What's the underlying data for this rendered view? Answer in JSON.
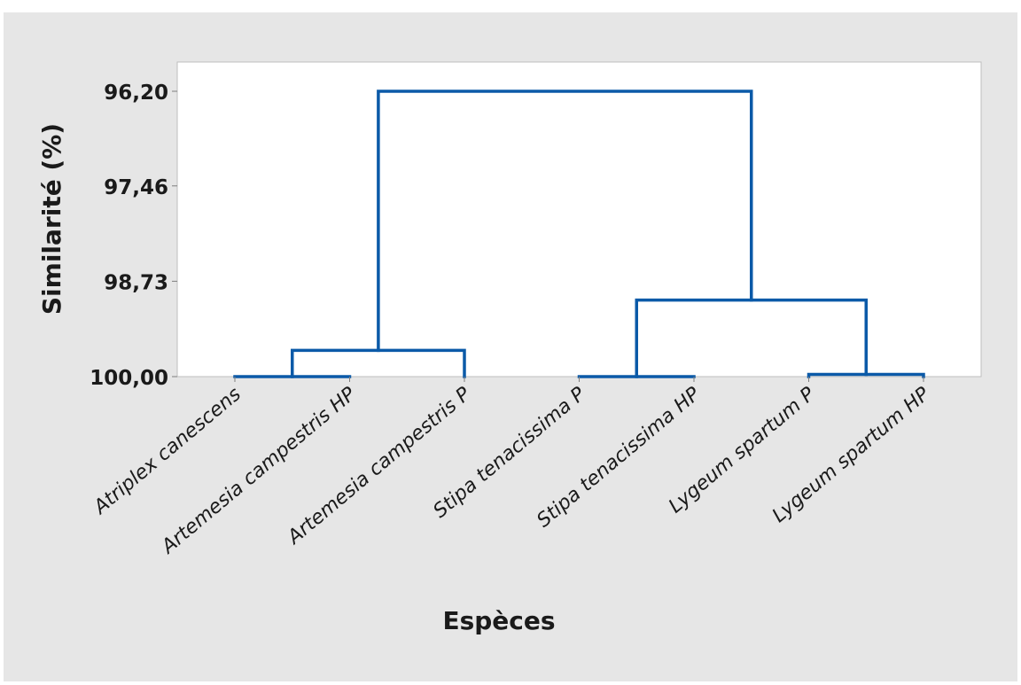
{
  "chart_data": {
    "type": "dendrogram",
    "title": "",
    "xlabel": "Espèces",
    "ylabel": "Similarité (%)",
    "yticks": [
      "96,20",
      "97,46",
      "98,73",
      "100,00"
    ],
    "ylim": [
      100.0,
      96.2
    ],
    "leaves": [
      "Atriplex canescens",
      "Artemesia campestris HP",
      "Artemesia campestris P",
      "Stipa tenacissima P",
      "Stipa tenacissima HP",
      "Lygeum spartum P",
      "Lygeum spartum HP"
    ],
    "merges": [
      {
        "left": "leaf:0",
        "right": "leaf:1",
        "similarity": 100.0
      },
      {
        "left": "leaf:3",
        "right": "leaf:4",
        "similarity": 100.0
      },
      {
        "left": "leaf:5",
        "right": "leaf:6",
        "similarity": 99.97
      },
      {
        "left": "node:0",
        "right": "leaf:2",
        "similarity": 99.65
      },
      {
        "left": "node:1",
        "right": "node:2",
        "similarity": 98.98
      },
      {
        "left": "node:3",
        "right": "node:4",
        "similarity": 96.2
      }
    ],
    "colors": {
      "line": "#0b5aa8",
      "background": "#e6e6e6",
      "plot_background": "#ffffff",
      "frame": "#bfbfbf",
      "text": "#1a1a1a"
    }
  }
}
